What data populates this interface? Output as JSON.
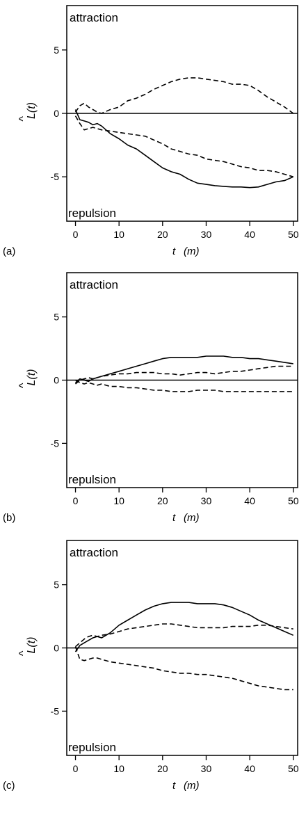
{
  "chart_data": [
    {
      "type": "line",
      "panel_label": "(a)",
      "xlabel": "t",
      "xlabel_unit": "(m)",
      "ylabel": "L(t)",
      "ylabel_hat": "^",
      "top_annotation": "attraction",
      "bottom_annotation": "repulsion",
      "xlim": [
        -2,
        51
      ],
      "ylim": [
        -8.5,
        8.5
      ],
      "xticks": [
        "0",
        "10",
        "20",
        "30",
        "40",
        "50"
      ],
      "xtick_values": [
        0,
        10,
        20,
        30,
        40,
        50
      ],
      "yticks": [
        "-5",
        "0",
        "5"
      ],
      "ytick_values": [
        -5,
        0,
        5
      ],
      "reference_line": 0,
      "series": [
        {
          "style": "solid",
          "x": [
            0,
            1,
            2,
            3,
            4,
            5,
            6,
            8,
            10,
            12,
            14,
            16,
            18,
            20,
            22,
            24,
            26,
            28,
            30,
            32,
            34,
            36,
            38,
            40,
            42,
            44,
            46,
            48,
            50
          ],
          "y": [
            0.3,
            -0.5,
            -0.6,
            -0.7,
            -0.9,
            -0.8,
            -1.0,
            -1.6,
            -2.0,
            -2.5,
            -2.8,
            -3.3,
            -3.8,
            -4.3,
            -4.6,
            -4.8,
            -5.2,
            -5.5,
            -5.6,
            -5.7,
            -5.75,
            -5.8,
            -5.8,
            -5.85,
            -5.8,
            -5.6,
            -5.4,
            -5.3,
            -5.0
          ]
        },
        {
          "style": "dashed",
          "x": [
            0,
            1,
            2,
            3,
            4,
            5,
            6,
            8,
            10,
            12,
            14,
            16,
            18,
            20,
            22,
            24,
            26,
            28,
            30,
            32,
            34,
            36,
            38,
            40,
            42,
            44,
            46,
            48,
            50
          ],
          "y": [
            -0.2,
            -0.8,
            -1.3,
            -1.2,
            -1.1,
            -1.2,
            -1.3,
            -1.4,
            -1.5,
            -1.6,
            -1.7,
            -1.8,
            -2.1,
            -2.4,
            -2.8,
            -3.0,
            -3.2,
            -3.3,
            -3.6,
            -3.7,
            -3.8,
            -4.0,
            -4.2,
            -4.3,
            -4.5,
            -4.5,
            -4.6,
            -4.8,
            -5.0
          ]
        },
        {
          "style": "dashed",
          "x": [
            0,
            1,
            2,
            3,
            4,
            5,
            6,
            8,
            10,
            12,
            14,
            16,
            18,
            20,
            22,
            24,
            26,
            28,
            30,
            32,
            34,
            36,
            38,
            40,
            42,
            44,
            46,
            48,
            50
          ],
          "y": [
            0.1,
            0.6,
            0.8,
            0.5,
            0.3,
            0.1,
            0.0,
            0.3,
            0.5,
            1.0,
            1.2,
            1.5,
            1.9,
            2.2,
            2.5,
            2.7,
            2.8,
            2.8,
            2.7,
            2.6,
            2.5,
            2.3,
            2.3,
            2.2,
            1.8,
            1.3,
            0.9,
            0.5,
            0.0
          ]
        }
      ]
    },
    {
      "type": "line",
      "panel_label": "(b)",
      "xlabel": "t",
      "xlabel_unit": "(m)",
      "ylabel": "L(t)",
      "ylabel_hat": "^",
      "top_annotation": "attraction",
      "bottom_annotation": "repulsion",
      "xlim": [
        -2,
        51
      ],
      "ylim": [
        -8.5,
        8.5
      ],
      "xticks": [
        "0",
        "10",
        "20",
        "30",
        "40",
        "50"
      ],
      "xtick_values": [
        0,
        10,
        20,
        30,
        40,
        50
      ],
      "yticks": [
        "-5",
        "0",
        "5"
      ],
      "ytick_values": [
        -5,
        0,
        5
      ],
      "reference_line": 0,
      "series": [
        {
          "style": "solid",
          "x": [
            0,
            1,
            2,
            3,
            4,
            5,
            6,
            8,
            10,
            12,
            14,
            16,
            18,
            20,
            22,
            24,
            26,
            28,
            30,
            32,
            34,
            36,
            38,
            40,
            42,
            44,
            46,
            48,
            50
          ],
          "y": [
            -0.2,
            0.1,
            0.0,
            -0.1,
            0.1,
            0.2,
            0.3,
            0.5,
            0.7,
            0.9,
            1.1,
            1.3,
            1.5,
            1.7,
            1.8,
            1.8,
            1.8,
            1.8,
            1.9,
            1.9,
            1.9,
            1.8,
            1.8,
            1.7,
            1.7,
            1.6,
            1.5,
            1.4,
            1.3
          ]
        },
        {
          "style": "dashed",
          "x": [
            0,
            1,
            2,
            3,
            4,
            5,
            6,
            8,
            10,
            12,
            14,
            16,
            18,
            20,
            22,
            24,
            26,
            28,
            30,
            32,
            34,
            36,
            38,
            40,
            42,
            44,
            46,
            48,
            50
          ],
          "y": [
            -0.3,
            0.0,
            0.1,
            0.2,
            0.1,
            0.2,
            0.3,
            0.4,
            0.5,
            0.5,
            0.6,
            0.6,
            0.6,
            0.5,
            0.5,
            0.4,
            0.5,
            0.6,
            0.6,
            0.5,
            0.6,
            0.7,
            0.7,
            0.8,
            0.9,
            1.0,
            1.1,
            1.1,
            1.1
          ]
        },
        {
          "style": "dashed",
          "x": [
            0,
            1,
            2,
            3,
            4,
            5,
            6,
            8,
            10,
            12,
            14,
            16,
            18,
            20,
            22,
            24,
            26,
            28,
            30,
            32,
            34,
            36,
            38,
            40,
            42,
            44,
            46,
            48,
            50
          ],
          "y": [
            0.0,
            -0.2,
            -0.3,
            -0.2,
            -0.3,
            -0.4,
            -0.3,
            -0.5,
            -0.5,
            -0.6,
            -0.6,
            -0.7,
            -0.8,
            -0.8,
            -0.9,
            -0.9,
            -0.9,
            -0.8,
            -0.8,
            -0.8,
            -0.9,
            -0.9,
            -0.9,
            -0.9,
            -0.9,
            -0.9,
            -0.9,
            -0.9,
            -0.9
          ]
        }
      ]
    },
    {
      "type": "line",
      "panel_label": "(c)",
      "xlabel": "t",
      "xlabel_unit": "(m)",
      "ylabel": "L(t)",
      "ylabel_hat": "^",
      "top_annotation": "attraction",
      "bottom_annotation": "repulsion",
      "xlim": [
        -2,
        51
      ],
      "ylim": [
        -8.5,
        8.5
      ],
      "xticks": [
        "0",
        "10",
        "20",
        "30",
        "40",
        "50"
      ],
      "xtick_values": [
        0,
        10,
        20,
        30,
        40,
        50
      ],
      "yticks": [
        "-5",
        "0",
        "5"
      ],
      "ytick_values": [
        -5,
        0,
        5
      ],
      "reference_line": 0,
      "series": [
        {
          "style": "solid",
          "x": [
            0,
            1,
            2,
            3,
            4,
            5,
            6,
            8,
            10,
            12,
            14,
            16,
            18,
            20,
            22,
            24,
            26,
            28,
            30,
            32,
            34,
            36,
            38,
            40,
            42,
            44,
            46,
            48,
            50
          ],
          "y": [
            -0.3,
            0.2,
            0.4,
            0.6,
            0.8,
            0.9,
            0.8,
            1.2,
            1.8,
            2.2,
            2.6,
            3.0,
            3.3,
            3.5,
            3.6,
            3.6,
            3.6,
            3.5,
            3.5,
            3.5,
            3.4,
            3.2,
            2.9,
            2.6,
            2.2,
            1.9,
            1.6,
            1.3,
            1.0
          ]
        },
        {
          "style": "dashed",
          "x": [
            0,
            1,
            2,
            3,
            4,
            5,
            6,
            8,
            10,
            12,
            14,
            16,
            18,
            20,
            22,
            24,
            26,
            28,
            30,
            32,
            34,
            36,
            38,
            40,
            42,
            44,
            46,
            48,
            50
          ],
          "y": [
            0.1,
            0.4,
            0.7,
            0.9,
            1.0,
            0.9,
            1.0,
            1.1,
            1.3,
            1.5,
            1.6,
            1.7,
            1.8,
            1.9,
            1.9,
            1.8,
            1.7,
            1.6,
            1.6,
            1.6,
            1.6,
            1.7,
            1.7,
            1.7,
            1.8,
            1.8,
            1.7,
            1.6,
            1.5
          ]
        },
        {
          "style": "dashed",
          "x": [
            0,
            1,
            2,
            3,
            4,
            5,
            6,
            8,
            10,
            12,
            14,
            16,
            18,
            20,
            22,
            24,
            26,
            28,
            30,
            32,
            34,
            36,
            38,
            40,
            42,
            44,
            46,
            48,
            50
          ],
          "y": [
            0.1,
            -0.9,
            -1.0,
            -0.9,
            -0.8,
            -0.8,
            -0.9,
            -1.1,
            -1.2,
            -1.3,
            -1.4,
            -1.5,
            -1.6,
            -1.8,
            -1.9,
            -2.0,
            -2.0,
            -2.1,
            -2.1,
            -2.2,
            -2.3,
            -2.4,
            -2.6,
            -2.8,
            -3.0,
            -3.1,
            -3.2,
            -3.3,
            -3.3
          ]
        }
      ]
    }
  ]
}
